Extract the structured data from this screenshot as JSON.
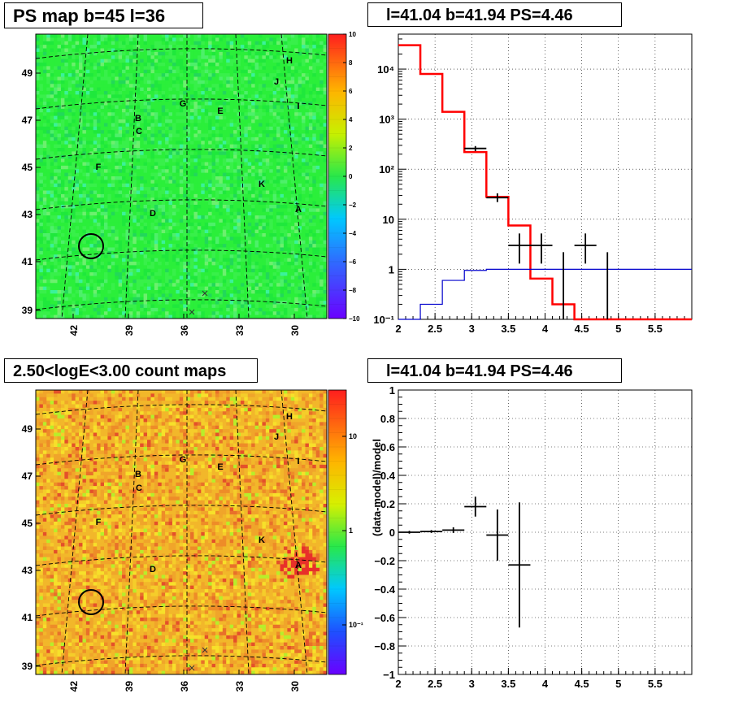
{
  "titles": {
    "ps_map": "PS map b=45 l=36",
    "count_map": "2.50<logE<3.00 count maps",
    "spectrum": "l=41.04 b=41.94 PS=4.46",
    "residual": "l=41.04 b=41.94 PS=4.46"
  },
  "colors": {
    "data": "#000000",
    "model": "#ff0000",
    "background": "#0000cc",
    "ps_map_base": "#2bef3a",
    "count_map_base": "#f2b72a"
  },
  "chart_data": [
    {
      "id": "ps_map",
      "type": "heatmap",
      "title": "PS map b=45 l=36",
      "x_ticks": [
        "42",
        "39",
        "36",
        "33",
        "30"
      ],
      "y_ticks": [
        "49",
        "47",
        "45",
        "43",
        "41",
        "39"
      ],
      "colorbar": {
        "range": [
          -10,
          10
        ],
        "ticks": [
          "10",
          "8",
          "6",
          "4",
          "2",
          "0",
          "−2",
          "−4",
          "−6",
          "−8",
          "−10"
        ]
      },
      "sources": [
        {
          "label": "H",
          "x": 356,
          "y": 74
        },
        {
          "label": "J",
          "x": 340,
          "y": 100
        },
        {
          "label": "I",
          "x": 367,
          "y": 130
        },
        {
          "label": "G",
          "x": 225,
          "y": 127
        },
        {
          "label": "E",
          "x": 271,
          "y": 136
        },
        {
          "label": "B",
          "x": 170,
          "y": 145
        },
        {
          "label": "C",
          "x": 171,
          "y": 161
        },
        {
          "label": "F",
          "x": 121,
          "y": 205
        },
        {
          "label": "K",
          "x": 322,
          "y": 226
        },
        {
          "label": "D",
          "x": 188,
          "y": 262
        },
        {
          "label": "A",
          "x": 367,
          "y": 257
        }
      ],
      "circle": {
        "x": 112,
        "y": 303
      },
      "crosses": [
        {
          "x": 252,
          "y": 361
        },
        {
          "x": 236,
          "y": 384
        }
      ]
    },
    {
      "id": "count_map",
      "type": "heatmap",
      "title": "2.50<logE<3.00 count maps",
      "x_ticks": [
        "42",
        "39",
        "36",
        "33",
        "30"
      ],
      "y_ticks": [
        "49",
        "47",
        "45",
        "43",
        "41",
        "39"
      ],
      "colorbar": {
        "scale": "log",
        "ticks": [
          "10",
          "1",
          "10⁻¹"
        ]
      },
      "sources": [
        {
          "label": "H",
          "x": 356,
          "y": 512
        },
        {
          "label": "J",
          "x": 340,
          "y": 537
        },
        {
          "label": "I",
          "x": 367,
          "y": 567
        },
        {
          "label": "G",
          "x": 225,
          "y": 565
        },
        {
          "label": "E",
          "x": 271,
          "y": 574
        },
        {
          "label": "B",
          "x": 170,
          "y": 583
        },
        {
          "label": "C",
          "x": 171,
          "y": 600
        },
        {
          "label": "F",
          "x": 121,
          "y": 642
        },
        {
          "label": "K",
          "x": 322,
          "y": 664
        },
        {
          "label": "D",
          "x": 188,
          "y": 700
        },
        {
          "label": "A",
          "x": 367,
          "y": 695
        }
      ],
      "circle": {
        "x": 112,
        "y": 741
      },
      "crosses": [
        {
          "x": 252,
          "y": 800
        },
        {
          "x": 236,
          "y": 822
        }
      ]
    },
    {
      "id": "spectrum",
      "type": "line",
      "title": "l=41.04 b=41.94 PS=4.46",
      "x_range": [
        2,
        6
      ],
      "y_scale": "log",
      "y_range": [
        0.1,
        50000
      ],
      "x_ticks": [
        "2",
        "2.5",
        "3",
        "3.5",
        "4",
        "4.5",
        "5",
        "5.5"
      ],
      "y_ticks": [
        {
          "v": 0.1,
          "label": "10⁻¹"
        },
        {
          "v": 1,
          "label": "1"
        },
        {
          "v": 10,
          "label": "10"
        },
        {
          "v": 100,
          "label": "10²"
        },
        {
          "v": 1000,
          "label": "10³"
        },
        {
          "v": 10000,
          "label": "10⁴"
        }
      ],
      "series": [
        {
          "kind": "model_step",
          "bin_edges": [
            2.0,
            2.3,
            2.6,
            2.9,
            3.2,
            3.5,
            3.8,
            4.1,
            4.4,
            4.7,
            5.0,
            5.3,
            5.6,
            5.9,
            6.0
          ],
          "values": [
            30000,
            8000,
            1400,
            220,
            28,
            7.5,
            0.65,
            0.2,
            0.1,
            0.1,
            0.1,
            0.1,
            0.1,
            0.1
          ]
        },
        {
          "kind": "background_step",
          "bin_edges": [
            2.0,
            2.3,
            2.6,
            2.9,
            3.2,
            3.5,
            3.8,
            4.1,
            4.4,
            4.7,
            5.0,
            5.3,
            5.6,
            5.9,
            6.0
          ],
          "values": [
            0.1,
            0.2,
            0.6,
            0.95,
            1.0,
            1.0,
            1.0,
            1.0,
            1.0,
            1.0,
            1.0,
            1.0,
            1.0,
            1.0
          ]
        },
        {
          "kind": "data_points",
          "points": [
            {
              "x": 3.05,
              "y": 260,
              "xerr": 0.15,
              "ylo": 230,
              "yhi": 290
            },
            {
              "x": 3.35,
              "y": 27,
              "xerr": 0.15,
              "ylo": 22,
              "yhi": 33
            },
            {
              "x": 3.65,
              "y": 3,
              "xerr": 0.15,
              "ylo": 1.3,
              "yhi": 5.2
            },
            {
              "x": 3.95,
              "y": 3,
              "xerr": 0.15,
              "ylo": 1.3,
              "yhi": 5.2
            },
            {
              "x": 4.25,
              "y": 0.1,
              "xerr": 0,
              "ylo": 0.1,
              "yhi": 2.2
            },
            {
              "x": 4.55,
              "y": 3,
              "xerr": 0.15,
              "ylo": 1.3,
              "yhi": 5.2
            },
            {
              "x": 4.85,
              "y": 0.1,
              "xerr": 0,
              "ylo": 0.1,
              "yhi": 2.2
            }
          ]
        }
      ]
    },
    {
      "id": "residual",
      "type": "scatter",
      "title": "l=41.04 b=41.94 PS=4.46",
      "ylabel": "(data-model)/model",
      "x_range": [
        2,
        6
      ],
      "y_range": [
        -1,
        1
      ],
      "x_ticks": [
        "2",
        "2.5",
        "3",
        "3.5",
        "4",
        "4.5",
        "5",
        "5.5"
      ],
      "y_ticks": [
        "1",
        "0.8",
        "0.6",
        "0.4",
        "0.2",
        "0",
        "−0.2",
        "−0.4",
        "−0.6",
        "−0.8",
        "−1"
      ],
      "points": [
        {
          "x": 2.15,
          "y": 0.0,
          "xerr": 0.15,
          "yerr": 0.01
        },
        {
          "x": 2.45,
          "y": 0.005,
          "xerr": 0.15,
          "yerr": 0.01
        },
        {
          "x": 2.75,
          "y": 0.015,
          "xerr": 0.15,
          "yerr": 0.02
        },
        {
          "x": 3.05,
          "y": 0.18,
          "xerr": 0.15,
          "yerr": 0.07
        },
        {
          "x": 3.35,
          "y": -0.02,
          "xerr": 0.15,
          "yerr": 0.18
        },
        {
          "x": 3.65,
          "y": -0.23,
          "xerr": 0.15,
          "yerr": 0.44
        }
      ]
    }
  ]
}
